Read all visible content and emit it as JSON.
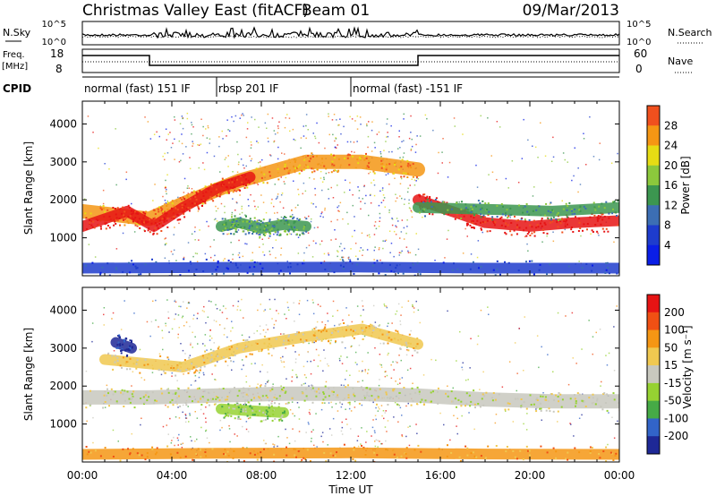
{
  "header": {
    "title": "Christmas Valley East (fitACF)",
    "beam": "Beam 01",
    "date": "09/Mar/2013"
  },
  "colors": {
    "power_scale": [
      "#0a1ee6",
      "#1e3ccd",
      "#3c6eb4",
      "#3c9650",
      "#8cc83c",
      "#e6dc14",
      "#f59614",
      "#f0501e",
      "#e61414"
    ],
    "velocity_scale": [
      "#1e2896",
      "#3264c8",
      "#46aa46",
      "#96d232",
      "#c8c8be",
      "#f0c850",
      "#f59614",
      "#f05014",
      "#e61414"
    ]
  },
  "chart_data": [
    {
      "type": "line",
      "name": "noise-panel",
      "left_label": "N.Sky",
      "right_label": "N.Search",
      "left_ticks": [
        "10^5",
        "10^0"
      ],
      "right_ticks": [
        "10^5",
        "10^0"
      ]
    },
    {
      "type": "line",
      "name": "frequency-panel",
      "left_label_1": "Freq.",
      "left_label_2": "[MHz]",
      "right_label": "Nave",
      "left_ticks": [
        "18",
        "8"
      ],
      "right_ticks": [
        "60",
        "0"
      ]
    },
    {
      "type": "table",
      "name": "cpid-panel",
      "label": "CPID",
      "segments": [
        {
          "start_hour": 0,
          "end_hour": 6,
          "text": "normal (fast) 151 IF"
        },
        {
          "start_hour": 6,
          "end_hour": 12,
          "text": "rbsp 201 IF"
        },
        {
          "start_hour": 12,
          "end_hour": 24,
          "text": "normal (fast) -151 IF"
        }
      ]
    },
    {
      "type": "heatmap",
      "name": "power-panel",
      "ylabel": "Slant Range [km]",
      "ylim": [
        0,
        4600
      ],
      "yticks": [
        "1000",
        "2000",
        "3000",
        "4000"
      ],
      "colorbar_label": "Power [dB]",
      "colorbar_ticks": [
        "28",
        "24",
        "20",
        "16",
        "12",
        "8",
        "4"
      ],
      "regions": [
        {
          "x": [
            0,
            3,
            4.5,
            7,
            10,
            12.5,
            15
          ],
          "y": [
            1700,
            1500,
            1900,
            2500,
            3000,
            3000,
            2800
          ],
          "color": 6
        },
        {
          "x": [
            0,
            2,
            3.2,
            4.5,
            6,
            7.5
          ],
          "y": [
            1300,
            1700,
            1300,
            1800,
            2300,
            2600
          ],
          "color": 8
        },
        {
          "x": [
            6.2,
            7,
            8,
            9,
            10
          ],
          "y": [
            1300,
            1400,
            1250,
            1350,
            1300
          ],
          "color": 3
        },
        {
          "x": [
            15,
            16.5,
            18,
            20,
            22,
            24
          ],
          "y": [
            2000,
            1700,
            1400,
            1300,
            1400,
            1450
          ],
          "color": 8
        },
        {
          "x": [
            15,
            18,
            21,
            24
          ],
          "y": [
            1800,
            1750,
            1700,
            1800
          ],
          "color": 3
        },
        {
          "x": [
            0,
            6,
            12,
            18,
            24
          ],
          "y": [
            200,
            220,
            230,
            200,
            200
          ],
          "color": 1
        }
      ]
    },
    {
      "type": "heatmap",
      "name": "velocity-panel",
      "ylabel": "Slant Range [km]",
      "ylim": [
        0,
        4600
      ],
      "yticks": [
        "1000",
        "2000",
        "3000",
        "4000"
      ],
      "xlabel": "Time UT",
      "xticks": [
        "00:00",
        "04:00",
        "08:00",
        "12:00",
        "16:00",
        "20:00",
        "00:00"
      ],
      "xlim": [
        0,
        24
      ],
      "colorbar_label": "Velocity [m s⁻¹]",
      "colorbar_ticks": [
        "200",
        "100",
        "50",
        "15",
        "-15",
        "-50",
        "-100",
        "-200"
      ],
      "regions": [
        {
          "x": [
            0,
            3,
            6,
            9,
            12,
            15,
            18,
            21,
            24
          ],
          "y": [
            1700,
            1700,
            1750,
            1800,
            1800,
            1750,
            1650,
            1600,
            1600
          ],
          "color": 4
        },
        {
          "x": [
            1,
            4.5,
            7,
            10,
            12.5,
            15
          ],
          "y": [
            2700,
            2500,
            3000,
            3300,
            3500,
            3100
          ],
          "color": 5
        },
        {
          "x": [
            6.2,
            7.5,
            9
          ],
          "y": [
            1400,
            1350,
            1300
          ],
          "color": 3
        },
        {
          "x": [
            1.5,
            2.2
          ],
          "y": [
            3150,
            3000
          ],
          "color": 0
        },
        {
          "x": [
            0,
            6,
            12,
            18,
            24
          ],
          "y": [
            200,
            230,
            240,
            210,
            200
          ],
          "color": 6
        }
      ]
    }
  ]
}
